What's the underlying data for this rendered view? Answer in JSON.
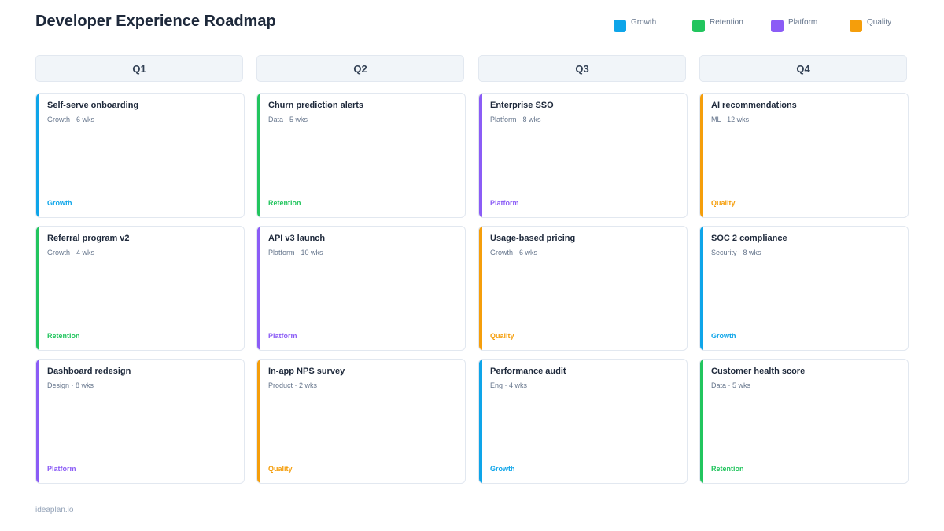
{
  "title": "Developer Experience Roadmap",
  "colors": {
    "Growth": "#0ea5e9",
    "Retention": "#22c55e",
    "Platform": "#8b5cf6",
    "Quality": "#f59e0b"
  },
  "legend": [
    {
      "label": "Growth",
      "color": "#0ea5e9"
    },
    {
      "label": "Retention",
      "color": "#22c55e"
    },
    {
      "label": "Platform",
      "color": "#8b5cf6"
    },
    {
      "label": "Quality",
      "color": "#f59e0b"
    }
  ],
  "columns": [
    {
      "label": "Q1",
      "cards": [
        {
          "title": "Self-serve onboarding",
          "meta": "Growth · 6 wks",
          "tag": "Growth",
          "color": "#0ea5e9"
        },
        {
          "title": "Referral program v2",
          "meta": "Growth · 4 wks",
          "tag": "Retention",
          "color": "#22c55e"
        },
        {
          "title": "Dashboard redesign",
          "meta": "Design · 8 wks",
          "tag": "Platform",
          "color": "#8b5cf6"
        }
      ]
    },
    {
      "label": "Q2",
      "cards": [
        {
          "title": "Churn prediction alerts",
          "meta": "Data · 5 wks",
          "tag": "Retention",
          "color": "#22c55e"
        },
        {
          "title": "API v3 launch",
          "meta": "Platform · 10 wks",
          "tag": "Platform",
          "color": "#8b5cf6"
        },
        {
          "title": "In-app NPS survey",
          "meta": "Product · 2 wks",
          "tag": "Quality",
          "color": "#f59e0b"
        }
      ]
    },
    {
      "label": "Q3",
      "cards": [
        {
          "title": "Enterprise SSO",
          "meta": "Platform · 8 wks",
          "tag": "Platform",
          "color": "#8b5cf6"
        },
        {
          "title": "Usage-based pricing",
          "meta": "Growth · 6 wks",
          "tag": "Quality",
          "color": "#f59e0b"
        },
        {
          "title": "Performance audit",
          "meta": "Eng · 4 wks",
          "tag": "Growth",
          "color": "#0ea5e9"
        }
      ]
    },
    {
      "label": "Q4",
      "cards": [
        {
          "title": "AI recommendations",
          "meta": "ML · 12 wks",
          "tag": "Quality",
          "color": "#f59e0b"
        },
        {
          "title": "SOC 2 compliance",
          "meta": "Security · 8 wks",
          "tag": "Growth",
          "color": "#0ea5e9"
        },
        {
          "title": "Customer health score",
          "meta": "Data · 5 wks",
          "tag": "Retention",
          "color": "#22c55e"
        }
      ]
    }
  ],
  "footer": "ideaplan.io"
}
